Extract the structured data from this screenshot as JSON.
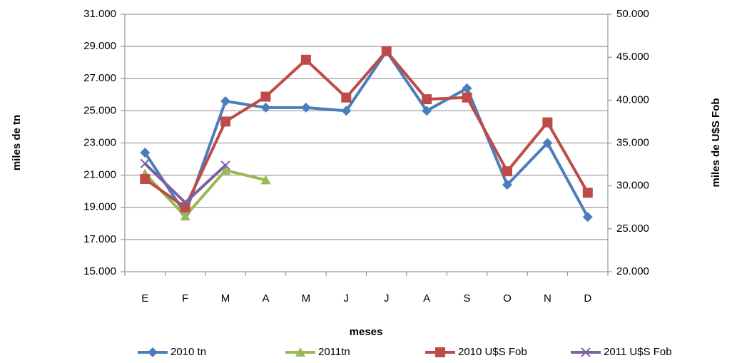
{
  "chart_data": {
    "type": "line",
    "xlabel": "meses",
    "ylabel": "miles de tn",
    "y2label": "miles de U$S Fob",
    "categories": [
      "E",
      "F",
      "M",
      "A",
      "M",
      "J",
      "J",
      "A",
      "S",
      "O",
      "N",
      "D"
    ],
    "ylim": [
      15000,
      31000
    ],
    "yticks": [
      {
        "value": 15000,
        "label": "15.000"
      },
      {
        "value": 17000,
        "label": "17.000"
      },
      {
        "value": 19000,
        "label": "19.000"
      },
      {
        "value": 21000,
        "label": "21.000"
      },
      {
        "value": 23000,
        "label": "23.000"
      },
      {
        "value": 25000,
        "label": "25.000"
      },
      {
        "value": 27000,
        "label": "27.000"
      },
      {
        "value": 29000,
        "label": "29.000"
      },
      {
        "value": 31000,
        "label": "31.000"
      }
    ],
    "y2lim": [
      20000,
      50000
    ],
    "y2ticks": [
      {
        "value": 20000,
        "label": "20.000"
      },
      {
        "value": 25000,
        "label": "25.000"
      },
      {
        "value": 30000,
        "label": "30.000"
      },
      {
        "value": 35000,
        "label": "35.000"
      },
      {
        "value": 40000,
        "label": "40.000"
      },
      {
        "value": 45000,
        "label": "45.000"
      },
      {
        "value": 50000,
        "label": "50.000"
      }
    ],
    "grid": true,
    "legend": "bottom",
    "series": [
      {
        "name": "2010 tn",
        "color": "#4a7ebb",
        "marker": "diamond",
        "values": [
          22400,
          18600,
          25600,
          25200,
          25200,
          25000,
          28700,
          25000,
          26400,
          20400,
          23000,
          18400
        ]
      },
      {
        "name": "2011tn",
        "color": "#98b954",
        "marker": "triangle",
        "values": [
          21100,
          18450,
          21300,
          20700,
          null,
          null,
          null,
          null,
          null,
          null,
          null,
          null
        ]
      },
      {
        "name": "2010 U$S Fob",
        "color": "#be4b48",
        "marker": "square",
        "axis": "y2",
        "values": [
          30800,
          27500,
          37500,
          40400,
          44700,
          40300,
          45700,
          40100,
          40300,
          31700,
          37400,
          29200
        ]
      },
      {
        "name": "2011 U$S Fob",
        "color": "#7d60a0",
        "marker": "x",
        "axis": "y2",
        "values": [
          32600,
          28050,
          32400,
          null,
          null,
          null,
          null,
          null,
          null,
          null,
          null,
          null
        ]
      }
    ]
  }
}
